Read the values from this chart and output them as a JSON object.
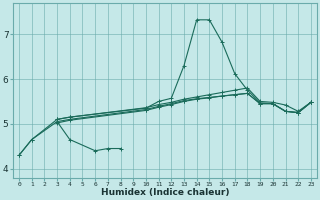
{
  "xlabel": "Humidex (Indice chaleur)",
  "bg_color": "#c5e8e8",
  "grid_color": "#6aabab",
  "line_color": "#1a6b5a",
  "xlim": [
    -0.5,
    23.5
  ],
  "ylim": [
    3.8,
    7.7
  ],
  "yticks": [
    4,
    5,
    6,
    7
  ],
  "xticks": [
    0,
    1,
    2,
    3,
    4,
    5,
    6,
    7,
    8,
    9,
    10,
    11,
    12,
    13,
    14,
    15,
    16,
    17,
    18,
    19,
    20,
    21,
    22,
    23
  ],
  "s1_x": [
    0,
    1,
    3,
    4,
    6,
    7,
    8
  ],
  "s1_y": [
    4.3,
    4.65,
    5.05,
    4.65,
    4.4,
    4.45,
    4.45
  ],
  "s2_x": [
    0,
    1,
    3,
    4,
    10,
    11,
    12,
    13,
    14,
    15,
    16,
    17,
    18,
    19,
    20,
    21,
    22,
    23
  ],
  "s2_y": [
    4.3,
    4.65,
    5.1,
    5.15,
    5.36,
    5.43,
    5.48,
    5.55,
    5.6,
    5.65,
    5.7,
    5.75,
    5.8,
    5.5,
    5.48,
    5.42,
    5.28,
    5.48
  ],
  "s3_x": [
    3,
    4,
    10,
    11,
    12,
    13,
    14,
    15,
    16,
    17,
    18,
    19,
    20,
    21,
    22,
    23
  ],
  "s3_y": [
    5.1,
    5.15,
    5.35,
    5.5,
    5.57,
    6.3,
    7.32,
    7.32,
    6.82,
    6.12,
    5.75,
    5.47,
    5.45,
    5.28,
    5.25,
    5.48
  ],
  "s4_x": [
    3,
    4,
    10,
    11,
    12,
    13,
    14,
    15,
    16,
    17,
    18,
    19,
    20,
    21,
    22,
    23
  ],
  "s4_y": [
    5.02,
    5.08,
    5.3,
    5.37,
    5.43,
    5.5,
    5.55,
    5.58,
    5.62,
    5.65,
    5.68,
    5.45,
    5.45,
    5.28,
    5.25,
    5.48
  ],
  "s5_x": [
    3,
    4,
    10,
    11,
    12,
    13,
    14,
    15,
    16,
    17,
    18,
    19,
    20,
    21,
    22,
    23
  ],
  "s5_y": [
    5.05,
    5.1,
    5.32,
    5.39,
    5.45,
    5.52,
    5.56,
    5.59,
    5.62,
    5.65,
    5.68,
    5.45,
    5.45,
    5.28,
    5.25,
    5.48
  ],
  "xlabel_fontsize": 6.5,
  "xlabel_fontweight": "bold",
  "xtick_fontsize": 4.5,
  "ytick_fontsize": 6.5
}
